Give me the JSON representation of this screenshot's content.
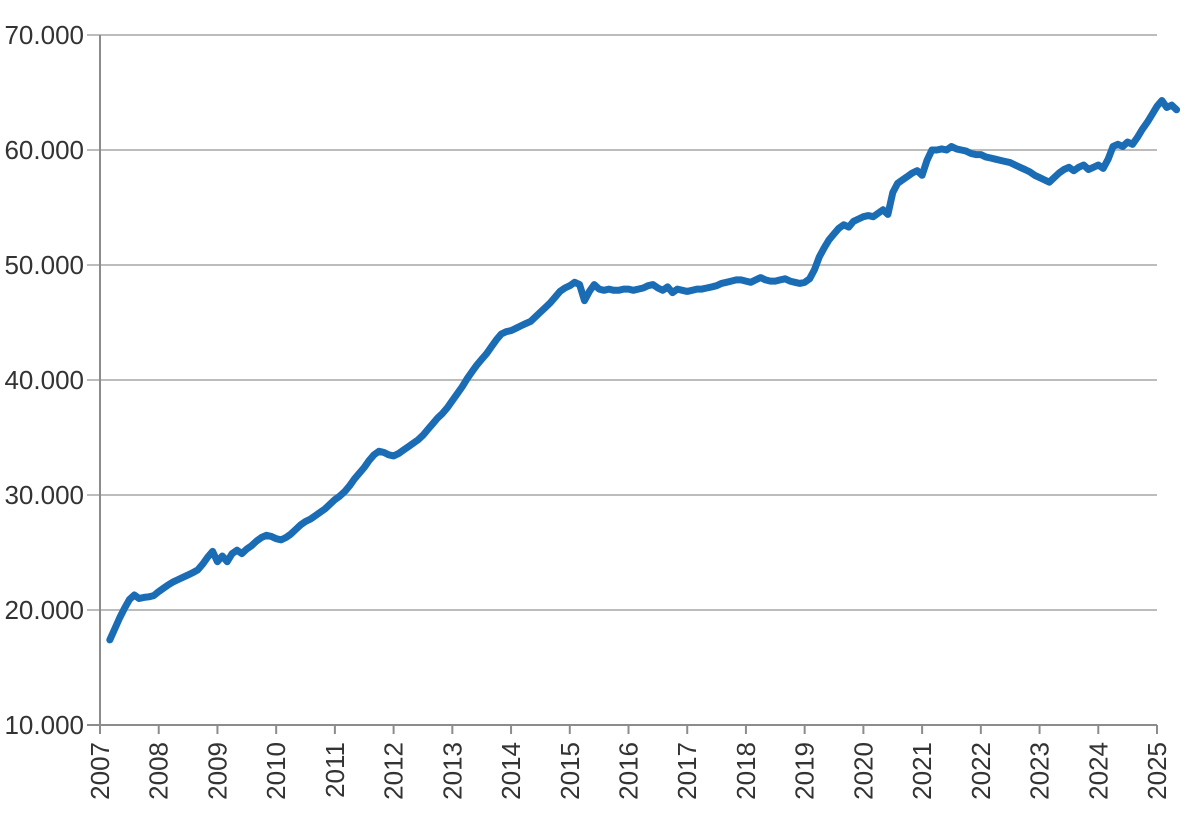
{
  "chart_data": {
    "type": "line",
    "title": "",
    "legend": "none",
    "grid": "horizontal",
    "background": "#ffffff",
    "colors": {
      "line": "#1a6cb5",
      "grid": "#a6a6a6",
      "axis": "#8c8c8c",
      "text": "#333333"
    },
    "line_width": 7,
    "y_axis": {
      "min": 10000,
      "max": 70000,
      "tick_step": 10000,
      "tick_values": [
        10000,
        20000,
        30000,
        40000,
        50000,
        60000,
        70000
      ],
      "tick_labels": [
        "10.000",
        "20.000",
        "30.000",
        "40.000",
        "50.000",
        "60.000",
        "70.000"
      ]
    },
    "x_axis": {
      "min_year": 2007,
      "max_year": 2025,
      "tick_years": [
        2007,
        2008,
        2009,
        2010,
        2011,
        2012,
        2013,
        2014,
        2015,
        2016,
        2017,
        2018,
        2019,
        2020,
        2021,
        2022,
        2023,
        2024,
        2025
      ],
      "tick_labels": [
        "2007",
        "2008",
        "2009",
        "2010",
        "2011",
        "2012",
        "2013",
        "2014",
        "2015",
        "2016",
        "2017",
        "2018",
        "2019",
        "2020",
        "2021",
        "2022",
        "2023",
        "2024",
        "2025"
      ],
      "label_rotation_deg": -90
    },
    "series": [
      {
        "name": "value",
        "interval": "monthly",
        "start": {
          "year": 2007,
          "month": 3
        },
        "values": [
          17400,
          18350,
          19300,
          20150,
          20900,
          21300,
          21000,
          21100,
          21150,
          21250,
          21600,
          21900,
          22200,
          22450,
          22650,
          22850,
          23050,
          23250,
          23500,
          24000,
          24600,
          25100,
          24200,
          24700,
          24200,
          24900,
          25200,
          24900,
          25300,
          25600,
          26000,
          26300,
          26500,
          26400,
          26200,
          26100,
          26300,
          26600,
          27000,
          27400,
          27700,
          27900,
          28200,
          28500,
          28800,
          29200,
          29600,
          29900,
          30300,
          30800,
          31400,
          31900,
          32400,
          33000,
          33500,
          33800,
          33700,
          33500,
          33400,
          33600,
          33900,
          34200,
          34500,
          34800,
          35200,
          35700,
          36200,
          36700,
          37100,
          37600,
          38200,
          38800,
          39400,
          40100,
          40700,
          41300,
          41800,
          42300,
          42900,
          43500,
          44000,
          44200,
          44300,
          44500,
          44700,
          44900,
          45100,
          45500,
          45900,
          46300,
          46700,
          47200,
          47700,
          48000,
          48200,
          48500,
          48300,
          46900,
          47700,
          48300,
          47900,
          47800,
          47900,
          47800,
          47800,
          47900,
          47900,
          47800,
          47900,
          48000,
          48200,
          48300,
          48000,
          47800,
          48100,
          47600,
          47900,
          47800,
          47700,
          47800,
          47900,
          47900,
          48000,
          48100,
          48200,
          48400,
          48500,
          48600,
          48700,
          48700,
          48600,
          48500,
          48700,
          48900,
          48700,
          48600,
          48600,
          48700,
          48800,
          48600,
          48500,
          48400,
          48500,
          48800,
          49600,
          50700,
          51500,
          52200,
          52700,
          53200,
          53500,
          53300,
          53800,
          54000,
          54200,
          54300,
          54200,
          54500,
          54800,
          54400,
          56300,
          57100,
          57400,
          57700,
          58000,
          58200,
          57800,
          59100,
          60000,
          60000,
          60100,
          60000,
          60300,
          60100,
          60000,
          59900,
          59700,
          59600,
          59600,
          59400,
          59300,
          59200,
          59100,
          59000,
          58900,
          58700,
          58500,
          58300,
          58100,
          57800,
          57600,
          57400,
          57200,
          57600,
          58000,
          58300,
          58500,
          58200,
          58500,
          58700,
          58300,
          58500,
          58700,
          58400,
          59200,
          60300,
          60500,
          60300,
          60700,
          60500,
          61100,
          61800,
          62400,
          63100,
          63800,
          64300,
          63700,
          63900,
          63500
        ]
      }
    ]
  }
}
